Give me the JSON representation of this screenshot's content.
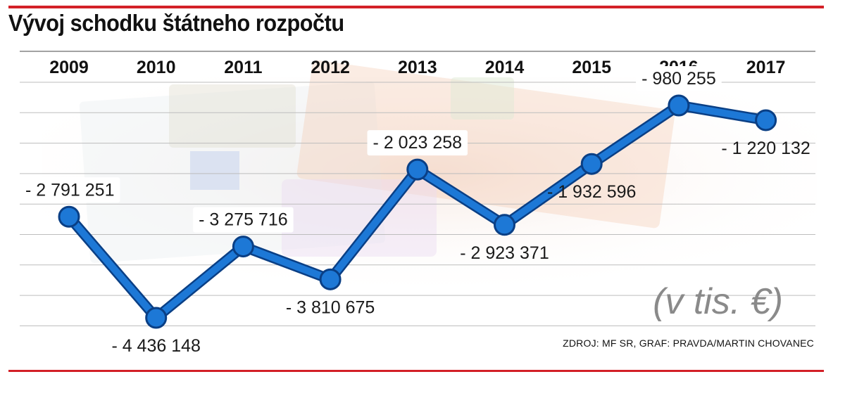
{
  "title": "Vývoj schodku štátneho rozpočtu",
  "source": "ZDROJ: MF SR, GRAF: PRAVDA/MARTIN CHOVANEC",
  "colors": {
    "accent_rule": "#d32027",
    "line": "#1d78d6",
    "line_outline": "#0a3f85",
    "grid": "#bdbdbd",
    "unit_text": "#8a8a8a"
  },
  "chart_data": {
    "type": "line",
    "title": "Vývoj schodku štátneho rozpočtu",
    "unit_note": "(v tis. €)",
    "categories": [
      "2009",
      "2010",
      "2011",
      "2012",
      "2013",
      "2014",
      "2015",
      "2016",
      "2017"
    ],
    "values": [
      -2791251,
      -4436148,
      -3275716,
      -3810675,
      -2023258,
      -2923371,
      -1932596,
      -980255,
      -1220132
    ],
    "labels": [
      "- 2 791 251",
      "- 4 436 148",
      "- 3 275 716",
      "- 3 810 675",
      "- 2 023 258",
      "- 2 923 371",
      "- 1 932 596",
      "- 980 255",
      "- 1 220 132"
    ],
    "label_positions": [
      "above",
      "below",
      "above",
      "below",
      "above",
      "below",
      "below",
      "above",
      "below"
    ],
    "label_boxed": [
      true,
      false,
      true,
      false,
      true,
      false,
      false,
      true,
      false
    ],
    "grid": true,
    "legend": "none",
    "xlabel": "",
    "ylabel": ""
  }
}
